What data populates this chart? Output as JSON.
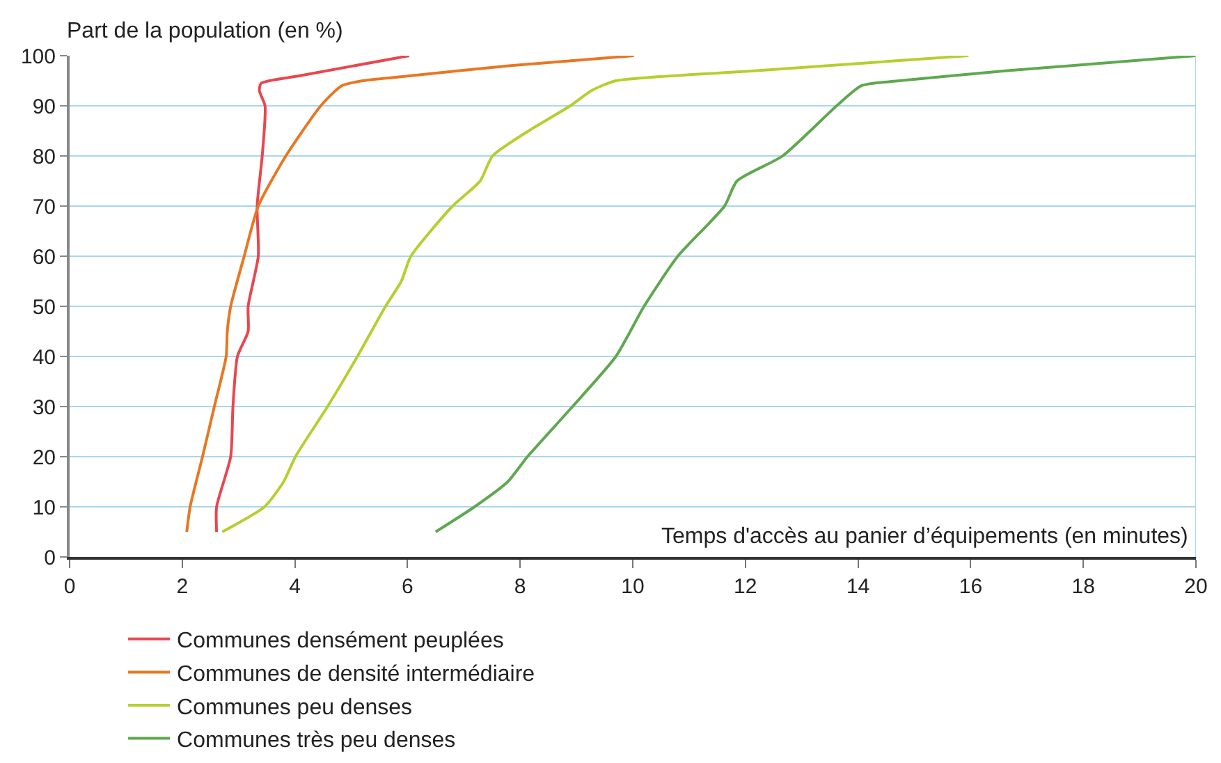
{
  "chart_data": {
    "type": "line",
    "xlabel": "Temps d'accès au panier d’équipements (en minutes)",
    "ylabel": "Part de la population (en %)",
    "xlim": [
      0,
      20
    ],
    "xticks": [
      0,
      2,
      4,
      6,
      8,
      10,
      12,
      14,
      16,
      18,
      20
    ],
    "ylim": [
      0,
      100
    ],
    "yticks": [
      0,
      10,
      20,
      30,
      40,
      50,
      60,
      70,
      80,
      90,
      100
    ],
    "grid": "y",
    "legend": "bottom",
    "marker": "none",
    "line_style": "solid",
    "series": [
      {
        "name": "Communes densément peuplées",
        "color": "#e8474f",
        "x": [
          2.61,
          2.61,
          2.86,
          2.9,
          2.98,
          3.17,
          3.17,
          3.35,
          3.33,
          3.42,
          3.47,
          3.37,
          3.4,
          4.09,
          6.03
        ],
        "values": [
          5,
          10,
          20,
          30,
          40,
          45,
          50,
          60,
          70,
          80,
          90,
          93,
          94.5,
          96,
          100
        ]
      },
      {
        "name": "Communes de densité intermédiaire",
        "color": "#e87722",
        "x": [
          2.08,
          2.14,
          2.36,
          2.57,
          2.78,
          2.8,
          2.86,
          3.1,
          3.35,
          3.84,
          4.46,
          4.83,
          5.2,
          6.06,
          7.8,
          10.02
        ],
        "values": [
          5,
          10,
          20,
          30,
          40,
          45,
          50,
          60,
          70,
          80,
          90,
          94,
          95,
          96,
          98,
          100
        ]
      },
      {
        "name": "Communes peu denses",
        "color": "#b5cf2f",
        "x": [
          2.71,
          3.46,
          3.8,
          4.01,
          4.58,
          5.11,
          5.61,
          5.89,
          6.06,
          6.8,
          7.29,
          7.51,
          8.15,
          8.89,
          9.26,
          9.7,
          12.2,
          15.96
        ],
        "values": [
          5,
          10,
          15,
          20,
          30,
          40,
          50,
          55,
          60,
          70,
          75,
          80,
          85,
          90,
          93,
          95,
          97,
          100
        ]
      },
      {
        "name": "Communes très peu denses",
        "color": "#5fa84f",
        "x": [
          6.5,
          7.19,
          7.78,
          8.13,
          8.93,
          9.7,
          10.2,
          10.8,
          11.63,
          11.85,
          12.66,
          13.62,
          14.06,
          14.73,
          16.65,
          20
        ],
        "values": [
          5,
          10,
          15,
          20,
          30,
          40,
          50,
          60,
          70,
          75,
          80,
          90,
          94,
          95,
          97,
          100
        ]
      }
    ]
  }
}
